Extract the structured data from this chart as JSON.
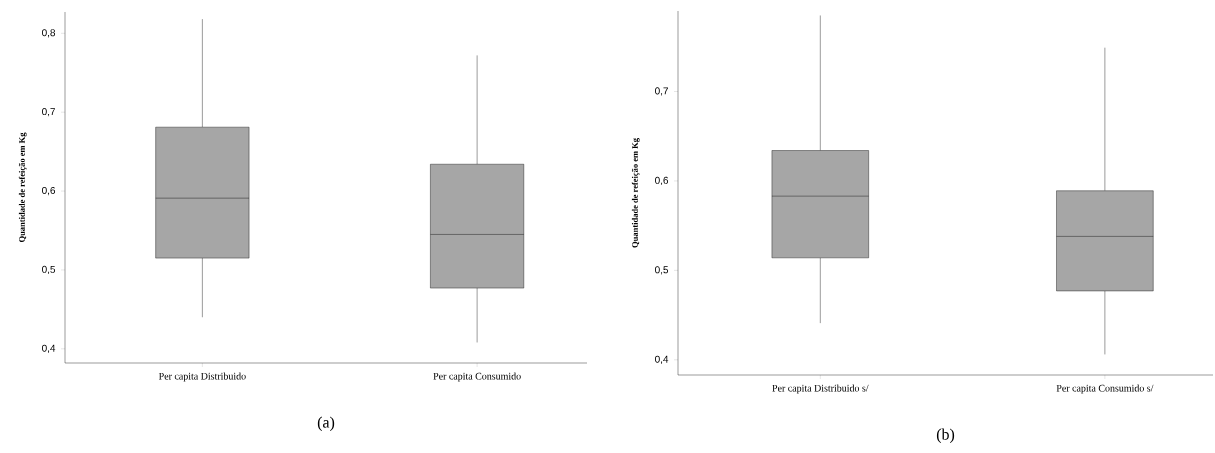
{
  "chart_data": [
    {
      "type": "box",
      "categories": [
        "Per capita Distribuido",
        "Per capita Consumido"
      ],
      "ylabel": "Quantidade de refeição em Kg",
      "ylim": [
        0.382,
        0.827
      ],
      "yticks": [
        {
          "value": 0.4,
          "label": "0,4"
        },
        {
          "value": 0.5,
          "label": "0,5"
        },
        {
          "value": 0.6,
          "label": "0,6"
        },
        {
          "value": 0.7,
          "label": "0,7"
        },
        {
          "value": 0.8,
          "label": "0,8"
        }
      ],
      "colors": [
        "#a6a6a6",
        "#a6a6a6"
      ],
      "boxes": [
        {
          "low": 0.44,
          "q1": 0.515,
          "median": 0.591,
          "q3": 0.681,
          "high": 0.818
        },
        {
          "low": 0.408,
          "q1": 0.477,
          "median": 0.545,
          "q3": 0.634,
          "high": 0.772
        }
      ],
      "annotations": [
        "(a)"
      ]
    },
    {
      "type": "box",
      "categories": [
        "Per capita Distribuido s/",
        "Per capita Consumido s/"
      ],
      "ylabel": "Quantidade de refeição em Kg",
      "ylim": [
        0.383,
        0.79
      ],
      "yticks": [
        {
          "value": 0.4,
          "label": "0,4"
        },
        {
          "value": 0.5,
          "label": "0,5"
        },
        {
          "value": 0.6,
          "label": "0,6"
        },
        {
          "value": 0.7,
          "label": "0,7"
        }
      ],
      "colors": [
        "#a6a6a6",
        "#a6a6a6"
      ],
      "boxes": [
        {
          "low": 0.441,
          "q1": 0.514,
          "median": 0.583,
          "q3": 0.634,
          "high": 0.785
        },
        {
          "low": 0.406,
          "q1": 0.477,
          "median": 0.538,
          "q3": 0.589,
          "high": 0.749
        }
      ],
      "annotations": [
        "(b)"
      ]
    }
  ]
}
